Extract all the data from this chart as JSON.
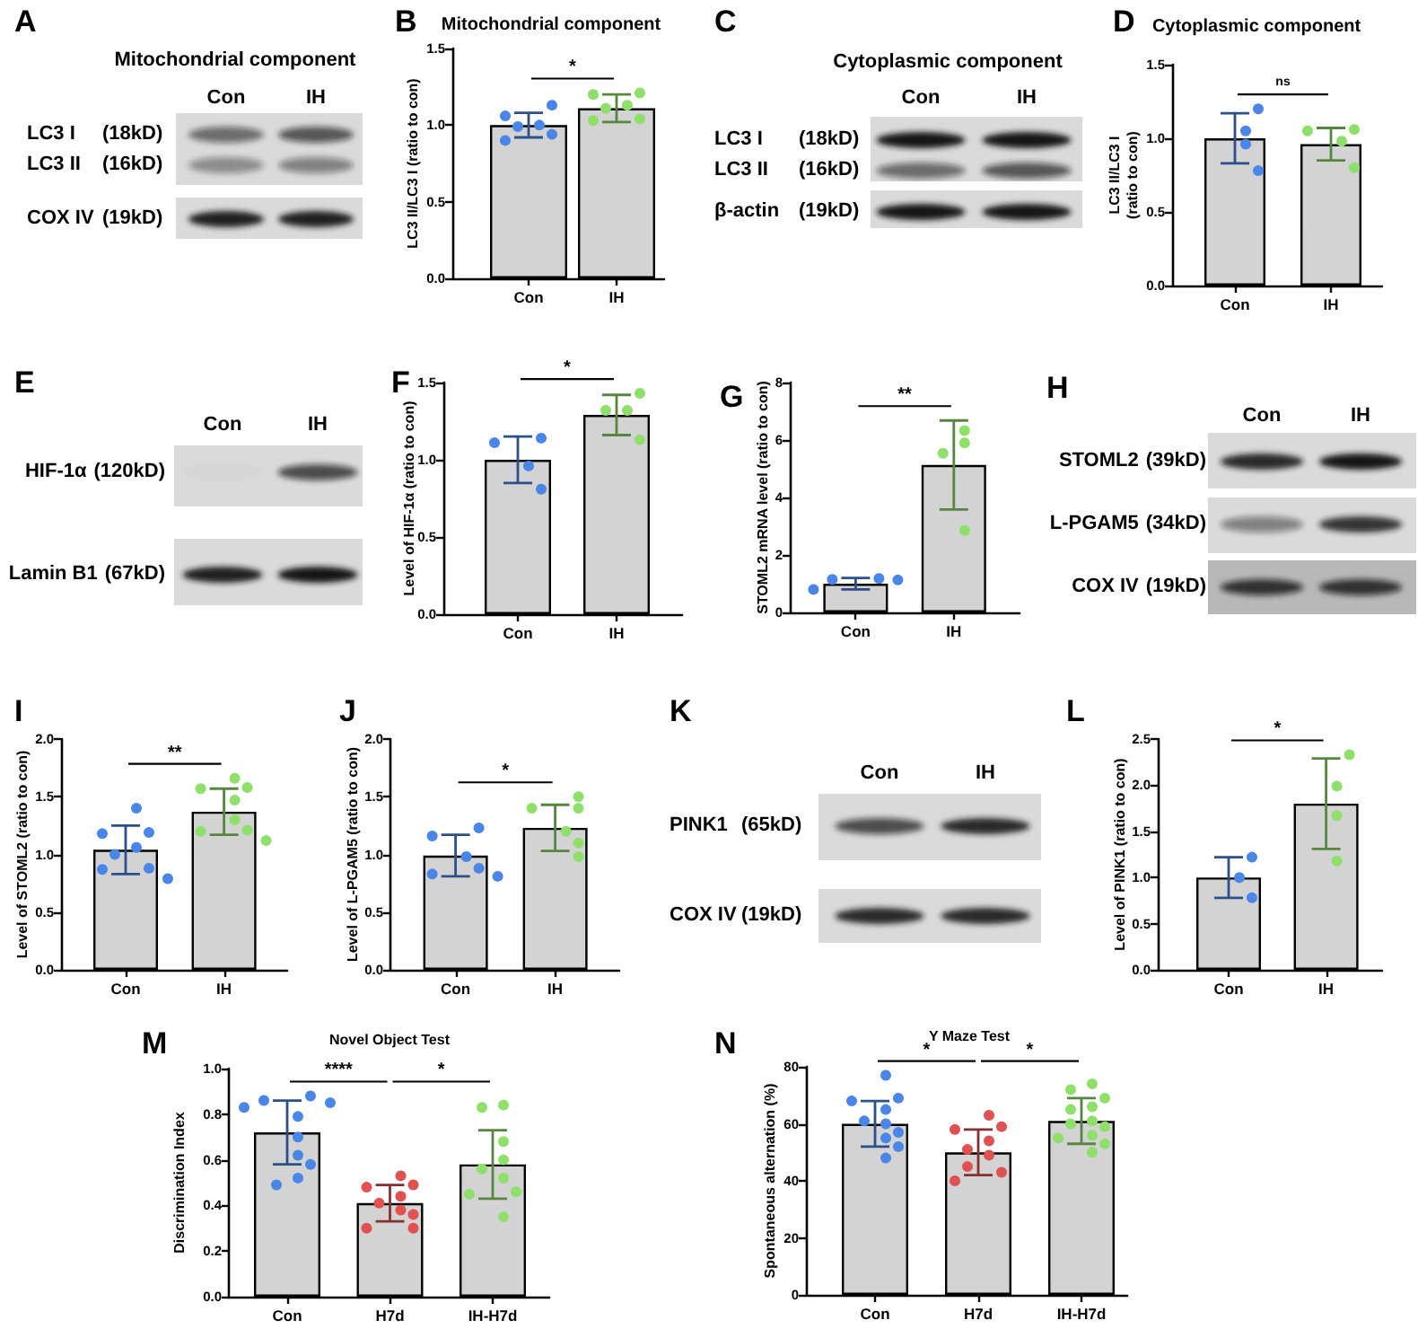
{
  "chart_data": [
    {
      "type": "other",
      "title": "Mitochondrial component",
      "categories": [
        "Con",
        "IH"
      ],
      "annotations": [
        "A",
        "LC3 I",
        "(18kD)",
        "LC3 II",
        "(16kD)",
        "COX IV",
        "(19kD)"
      ]
    },
    {
      "type": "bar",
      "title": "Mitochondrial component",
      "ylabel": "LC3 II/LC3 I (ratio to con)",
      "categories": [
        "Con",
        "IH"
      ],
      "ylim": [
        0,
        1.5
      ],
      "yticks": [
        {
          "value": 0,
          "label": "0.0"
        },
        0.5,
        {
          "value": 1,
          "label": "1.0"
        },
        1.5
      ],
      "marker": "circle",
      "annotations": [
        "B",
        "*"
      ],
      "series": [
        {
          "type": "bar",
          "color": "#d3d3d3",
          "values": [
            1.0,
            1.11
          ],
          "errors": [
            0.08,
            0.09
          ]
        },
        {
          "type": "scatter",
          "color": "#4a86e8",
          "x": [
            "Con",
            "Con",
            "Con",
            "Con",
            "Con",
            "Con"
          ],
          "values": [
            1.13,
            1.06,
            1.0,
            0.99,
            0.94,
            0.9
          ]
        },
        {
          "type": "scatter",
          "color": "#8fe06b",
          "x": [
            "IH",
            "IH",
            "IH",
            "IH",
            "IH",
            "IH"
          ],
          "values": [
            1.21,
            1.2,
            1.13,
            1.11,
            1.04,
            1.03
          ]
        }
      ]
    },
    {
      "type": "other",
      "title": "Cytoplasmic component",
      "categories": [
        "Con",
        "IH"
      ],
      "annotations": [
        "C",
        "LC3 I",
        "(18kD)",
        "LC3 II",
        "(16kD)",
        "β-actin",
        "(19kD)"
      ]
    },
    {
      "type": "bar",
      "title": "Cytoplasmic component",
      "ylabel": "LC3 II/LC3 I\n(ratio to con)",
      "categories": [
        "Con",
        "IH"
      ],
      "ylim": [
        0,
        1.5
      ],
      "yticks": [
        {
          "value": 0,
          "label": "0.0"
        },
        0.5,
        {
          "value": 1,
          "label": "1.0"
        },
        1.5
      ],
      "marker": "circle",
      "annotations": [
        "D",
        "ns"
      ],
      "series": [
        {
          "type": "bar",
          "color": "#d3d3d3",
          "values": [
            1.0,
            0.96
          ],
          "errors": [
            0.17,
            0.11
          ]
        },
        {
          "type": "scatter",
          "color": "#4a86e8",
          "x": [
            "Con",
            "Con",
            "Con",
            "Con"
          ],
          "values": [
            1.2,
            1.05,
            0.96,
            0.78
          ]
        },
        {
          "type": "scatter",
          "color": "#8fe06b",
          "x": [
            "IH",
            "IH",
            "IH",
            "IH"
          ],
          "values": [
            1.06,
            1.05,
            0.98,
            0.8
          ]
        }
      ]
    },
    {
      "type": "other",
      "categories": [
        "Con",
        "IH"
      ],
      "annotations": [
        "E",
        "HIF-1α",
        "(120kD)",
        "Lamin B1",
        "(67kD)"
      ]
    },
    {
      "type": "bar",
      "ylabel": "Level of HIF-1α (ratio to con)",
      "categories": [
        "Con",
        "IH"
      ],
      "ylim": [
        0,
        1.5
      ],
      "yticks": [
        {
          "value": 0,
          "label": "0.0"
        },
        0.5,
        {
          "value": 1,
          "label": "1.0"
        },
        1.5
      ],
      "marker": "circle",
      "annotations": [
        "F",
        "*"
      ],
      "series": [
        {
          "type": "bar",
          "color": "#d3d3d3",
          "values": [
            1.0,
            1.29
          ],
          "errors": [
            0.15,
            0.13
          ]
        },
        {
          "type": "scatter",
          "color": "#4a86e8",
          "x": [
            "Con",
            "Con",
            "Con",
            "Con"
          ],
          "values": [
            1.14,
            1.11,
            0.96,
            0.81
          ]
        },
        {
          "type": "scatter",
          "color": "#8fe06b",
          "x": [
            "IH",
            "IH",
            "IH",
            "IH"
          ],
          "values": [
            1.43,
            1.32,
            1.32,
            1.13
          ]
        }
      ]
    },
    {
      "type": "bar",
      "ylabel": "STOML2 mRNA level (ratio to con)",
      "categories": [
        "Con",
        "IH"
      ],
      "ylim": [
        0,
        8
      ],
      "yticks": [
        0,
        2,
        4,
        6,
        8
      ],
      "marker": "circle",
      "annotations": [
        "G",
        "**"
      ],
      "series": [
        {
          "type": "bar",
          "color": "#d3d3d3",
          "values": [
            1.0,
            5.13
          ],
          "errors": [
            0.2,
            1.55
          ]
        },
        {
          "type": "scatter",
          "color": "#4a86e8",
          "x": [
            "Con",
            "Con",
            "Con",
            "Con"
          ],
          "values": [
            1.18,
            1.15,
            1.13,
            0.8
          ]
        },
        {
          "type": "scatter",
          "color": "#8fe06b",
          "x": [
            "IH",
            "IH",
            "IH",
            "IH"
          ],
          "values": [
            6.33,
            5.9,
            5.54,
            2.85
          ]
        }
      ]
    },
    {
      "type": "other",
      "categories": [
        "Con",
        "IH"
      ],
      "annotations": [
        "H",
        "STOML2",
        "(39kD)",
        "L-PGAM5",
        "(34kD)",
        "COX IV",
        "(19kD)"
      ]
    },
    {
      "type": "bar",
      "ylabel": "Level of STOML2 (ratio to con)",
      "categories": [
        "Con",
        "IH"
      ],
      "ylim": [
        0,
        2
      ],
      "yticks": [
        {
          "value": 0,
          "label": "0.0"
        },
        0.5,
        {
          "value": 1,
          "label": "1.0"
        },
        1.5,
        {
          "value": 2,
          "label": "2.0"
        }
      ],
      "marker": "circle",
      "annotations": [
        "I",
        "**"
      ],
      "series": [
        {
          "type": "bar",
          "color": "#d3d3d3",
          "values": [
            1.04,
            1.37
          ],
          "errors": [
            0.21,
            0.2
          ]
        },
        {
          "type": "scatter",
          "color": "#4a86e8",
          "x": [
            "Con",
            "Con",
            "Con",
            "Con",
            "Con",
            "Con",
            "Con",
            "Con"
          ],
          "values": [
            1.4,
            1.19,
            1.18,
            1.06,
            1.0,
            0.88,
            0.87,
            0.79
          ]
        },
        {
          "type": "scatter",
          "color": "#8fe06b",
          "x": [
            "IH",
            "IH",
            "IH",
            "IH",
            "IH",
            "IH",
            "IH",
            "IH"
          ],
          "values": [
            1.66,
            1.58,
            1.57,
            1.47,
            1.3,
            1.21,
            1.2,
            1.12
          ]
        }
      ]
    },
    {
      "type": "bar",
      "ylabel": "Level of L-PGAM5 (ratio to con)",
      "categories": [
        "Con",
        "IH"
      ],
      "ylim": [
        0,
        2
      ],
      "yticks": [
        {
          "value": 0,
          "label": "0.0"
        },
        0.5,
        {
          "value": 1,
          "label": "1.0"
        },
        1.5,
        {
          "value": 2,
          "label": "2.0"
        }
      ],
      "marker": "circle",
      "annotations": [
        "J",
        "*"
      ],
      "series": [
        {
          "type": "bar",
          "color": "#d3d3d3",
          "values": [
            0.99,
            1.23
          ],
          "errors": [
            0.18,
            0.2
          ]
        },
        {
          "type": "scatter",
          "color": "#4a86e8",
          "x": [
            "Con",
            "Con",
            "Con",
            "Con",
            "Con",
            "Con"
          ],
          "values": [
            1.23,
            1.16,
            0.98,
            0.88,
            0.83,
            0.81
          ]
        },
        {
          "type": "scatter",
          "color": "#8fe06b",
          "x": [
            "IH",
            "IH",
            "IH",
            "IH",
            "IH",
            "IH"
          ],
          "values": [
            1.5,
            1.4,
            1.4,
            1.2,
            1.1,
            0.98
          ]
        }
      ]
    },
    {
      "type": "other",
      "categories": [
        "Con",
        "IH"
      ],
      "annotations": [
        "K",
        "PINK1",
        "(65kD)",
        "COX IV",
        "(19kD)"
      ]
    },
    {
      "type": "bar",
      "ylabel": "Level of PINK1 (ratio to con)",
      "categories": [
        "Con",
        "IH"
      ],
      "ylim": [
        0,
        2.5
      ],
      "yticks": [
        {
          "value": 0,
          "label": "0.0"
        },
        0.5,
        {
          "value": 1,
          "label": "1.0"
        },
        1.5,
        {
          "value": 2,
          "label": "2.0"
        },
        2.5
      ],
      "marker": "circle",
      "annotations": [
        "L",
        "*"
      ],
      "series": [
        {
          "type": "bar",
          "color": "#d3d3d3",
          "values": [
            1.0,
            1.8
          ],
          "errors": [
            0.22,
            0.49
          ]
        },
        {
          "type": "scatter",
          "color": "#4a86e8",
          "x": [
            "Con",
            "Con",
            "Con"
          ],
          "values": [
            1.22,
            1.0,
            0.78
          ]
        },
        {
          "type": "scatter",
          "color": "#8fe06b",
          "x": [
            "IH",
            "IH",
            "IH",
            "IH"
          ],
          "values": [
            2.33,
            1.99,
            1.67,
            1.18
          ]
        }
      ]
    },
    {
      "type": "bar",
      "title": "Novel Object Test",
      "ylabel": "Discrimination Index",
      "categories": [
        "Con",
        "H7d",
        "IH-H7d"
      ],
      "ylim": [
        0,
        1
      ],
      "yticks": [
        {
          "value": 0,
          "label": "0.0"
        },
        0.2,
        0.4,
        0.6,
        0.8,
        {
          "value": 1,
          "label": "1.0"
        }
      ],
      "marker": "circle",
      "annotations": [
        "M",
        "****",
        "*"
      ],
      "series": [
        {
          "type": "bar",
          "color": "#d3d3d3",
          "values": [
            0.72,
            0.41,
            0.58
          ],
          "errors": [
            0.14,
            0.08,
            0.15
          ]
        },
        {
          "type": "scatter",
          "color": "#4a86e8",
          "x": [
            "Con",
            "Con",
            "Con",
            "Con",
            "Con",
            "Con",
            "Con",
            "Con",
            "Con",
            "Con"
          ],
          "values": [
            0.88,
            0.86,
            0.85,
            0.83,
            0.79,
            0.7,
            0.62,
            0.58,
            0.52,
            0.49
          ]
        },
        {
          "type": "scatter",
          "color": "#e05252",
          "x": [
            "H7d",
            "H7d",
            "H7d",
            "H7d",
            "H7d",
            "H7d",
            "H7d",
            "H7d",
            "H7d"
          ],
          "values": [
            0.53,
            0.49,
            0.48,
            0.44,
            0.41,
            0.38,
            0.36,
            0.3,
            0.3
          ]
        },
        {
          "type": "scatter",
          "color": "#8fe06b",
          "x": [
            "IH-H7d",
            "IH-H7d",
            "IH-H7d",
            "IH-H7d",
            "IH-H7d",
            "IH-H7d",
            "IH-H7d",
            "IH-H7d",
            "IH-H7d"
          ],
          "values": [
            0.84,
            0.83,
            0.68,
            0.6,
            0.56,
            0.52,
            0.46,
            0.45,
            0.35
          ]
        }
      ]
    },
    {
      "type": "bar",
      "title": "Y Maze Test",
      "ylabel": "Spontaneous alternation (%)",
      "categories": [
        "Con",
        "H7d",
        "IH-H7d"
      ],
      "ylim": [
        0,
        80
      ],
      "yticks": [
        0,
        20,
        40,
        60,
        80
      ],
      "marker": "circle",
      "annotations": [
        "N",
        "*",
        "*"
      ],
      "series": [
        {
          "type": "bar",
          "color": "#d3d3d3",
          "values": [
            60,
            50,
            61
          ],
          "errors": [
            8,
            8,
            8
          ]
        },
        {
          "type": "scatter",
          "color": "#4a86e8",
          "x": [
            "Con",
            "Con",
            "Con",
            "Con",
            "Con",
            "Con",
            "Con",
            "Con",
            "Con",
            "Con"
          ],
          "values": [
            77,
            69,
            68,
            65,
            61,
            60,
            57,
            55,
            52,
            48
          ]
        },
        {
          "type": "scatter",
          "color": "#e05252",
          "x": [
            "H7d",
            "H7d",
            "H7d",
            "H7d",
            "H7d",
            "H7d",
            "H7d",
            "H7d",
            "H7d"
          ],
          "values": [
            63,
            59,
            58,
            54,
            51,
            49,
            45,
            43,
            40
          ]
        },
        {
          "type": "scatter",
          "color": "#8fe06b",
          "x": [
            "IH-H7d",
            "IH-H7d",
            "IH-H7d",
            "IH-H7d",
            "IH-H7d",
            "IH-H7d",
            "IH-H7d",
            "IH-H7d",
            "IH-H7d",
            "IH-H7d",
            "IH-H7d",
            "IH-H7d"
          ],
          "values": [
            74,
            72,
            69,
            66,
            65,
            61,
            60,
            59,
            56,
            55,
            53,
            50
          ]
        }
      ]
    }
  ]
}
